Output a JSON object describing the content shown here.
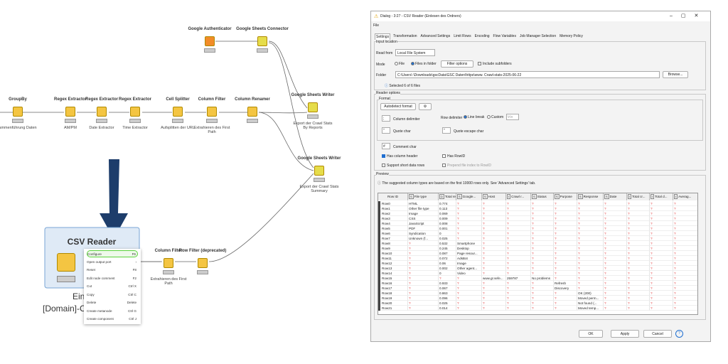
{
  "workflow": {
    "nodes": [
      {
        "title": "GroupBy",
        "caption": "ammenführung Daten"
      },
      {
        "title": "Regex Extractor",
        "caption": "AM/PM"
      },
      {
        "title": "Regex Extractor",
        "caption": "Date Extractor"
      },
      {
        "title": "Regex Extractor",
        "caption": "Time Extractor"
      },
      {
        "title": "Cell Splitter",
        "caption": "Aufsplitten der URL"
      },
      {
        "title": "Column Filter",
        "caption": "Extrahieren des First Path"
      },
      {
        "title": "Column Renamer"
      },
      {
        "title": "Google Sheets Writer",
        "caption": "Export der Crawl Stats By Reports"
      },
      {
        "title": "Google Sheets Writer",
        "caption": "Export der Crawl Stats Summary"
      },
      {
        "title": "Google Authenticator"
      },
      {
        "title": "Google Sheets Connector"
      },
      {
        "title": "Column Filter",
        "caption": "Extrahieren des First Path"
      },
      {
        "title": "Row Filter (deprecated)"
      }
    ],
    "csv_reader": {
      "title": "CSV Reader",
      "caption": [
        "Einlesen des",
        "[Domain]-Crawl S"
      ]
    }
  },
  "context_menu": {
    "items": [
      {
        "label": "Configure",
        "shortcut": "F6"
      },
      {
        "label": "Open output port",
        "shortcut": "›"
      },
      {
        "label": "Reset",
        "shortcut": "F8"
      },
      {
        "label": "Edit node comment",
        "shortcut": "F2"
      },
      {
        "label": "Cut",
        "shortcut": "Ctrl X"
      },
      {
        "label": "Copy",
        "shortcut": "Ctrl C"
      },
      {
        "label": "Delete",
        "shortcut": "Delete"
      },
      {
        "label": "Create metanode",
        "shortcut": "Ctrl G"
      },
      {
        "label": "Create component",
        "shortcut": "Ctrl J"
      }
    ]
  },
  "dialog": {
    "title": "Dialog - 3:27 - CSV Reader (Einlesen des Ordners)",
    "menu": "File",
    "tabs": [
      "Settings",
      "Transformation",
      "Advanced Settings",
      "Limit Rows",
      "Encoding",
      "Flow Variables",
      "Job Manager Selection",
      "Memory Policy"
    ],
    "input_location": {
      "heading": "Input location",
      "read_from_label": "Read from",
      "read_from": "Local File System",
      "mode_label": "Mode",
      "mode_file": "File",
      "mode_folder": "Files in folder",
      "filter_button": "Filter options",
      "include_subfolders": "Include subfolders",
      "folder_label": "Folder",
      "folder": "C:\\Users\\          \\Downloads\\gscData\\GSC Daten\\https\\www.          Crawl-stats-2025-06-22",
      "browse": "Browse...",
      "selected": "Selected 6 of 6 files"
    },
    "reader_options": {
      "heading": "Reader options",
      "format": "Format",
      "autodetect": "Autodetect format",
      "column_delimiter_value": ";",
      "column_delimiter": "Column delimiter",
      "row_delimiter": "Row delimiter",
      "line_break": "Line break",
      "custom": "Custom",
      "custom_value": "\\r\\n",
      "quote_value": "\"",
      "quote_char": "Quote char",
      "quote_escape_value": "\"",
      "quote_escape_char": "Quote escape char",
      "comment_value": "#",
      "comment_char": "Comment char",
      "has_header": "Has column header",
      "has_rowid": "Has RowID",
      "short_rows": "Support short data rows",
      "prepend": "Prepend file index to RowID"
    },
    "preview": {
      "heading": "Preview",
      "info": "The suggested column types are based on the first 10000 rows only. See 'Advanced Settings' tab.",
      "columns": [
        {
          "name": "Row ID"
        },
        {
          "type": "S",
          "name": "File type"
        },
        {
          "type": "D",
          "name": "Total re..."
        },
        {
          "type": "S",
          "name": "Google..."
        },
        {
          "type": "S",
          "name": "Host"
        },
        {
          "type": "I",
          "name": "Crawl r..."
        },
        {
          "type": "S",
          "name": "Status"
        },
        {
          "type": "S",
          "name": "Purpose"
        },
        {
          "type": "S",
          "name": "Response"
        },
        {
          "type": "S",
          "name": "Date"
        },
        {
          "type": "I",
          "name": "Total cr..."
        },
        {
          "type": "I",
          "name": "Total d..."
        },
        {
          "type": "I",
          "name": "Averag..."
        }
      ],
      "rows": [
        [
          "Row0",
          "HTML",
          "0.774",
          "?",
          "?",
          "?",
          "?",
          "?",
          "?",
          "?",
          "?",
          "?",
          "?"
        ],
        [
          "Row1",
          "Other file type",
          "0.113",
          "?",
          "?",
          "?",
          "?",
          "?",
          "?",
          "?",
          "?",
          "?",
          "?"
        ],
        [
          "Row2",
          "Image",
          "0.069",
          "?",
          "?",
          "?",
          "?",
          "?",
          "?",
          "?",
          "?",
          "?",
          "?"
        ],
        [
          "Row3",
          "CSS",
          "0.009",
          "?",
          "?",
          "?",
          "?",
          "?",
          "?",
          "?",
          "?",
          "?",
          "?"
        ],
        [
          "Row4",
          "JavaScript",
          "0.008",
          "?",
          "?",
          "?",
          "?",
          "?",
          "?",
          "?",
          "?",
          "?",
          "?"
        ],
        [
          "Row5",
          "PDF",
          "0.001",
          "?",
          "?",
          "?",
          "?",
          "?",
          "?",
          "?",
          "?",
          "?",
          "?"
        ],
        [
          "Row6",
          "Syndication",
          "0",
          "?",
          "?",
          "?",
          "?",
          "?",
          "?",
          "?",
          "?",
          "?",
          "?"
        ],
        [
          "Row7",
          "Unknown (f...",
          "0.025",
          "?",
          "?",
          "?",
          "?",
          "?",
          "?",
          "?",
          "?",
          "?",
          "?"
        ],
        [
          "Row8",
          "?",
          "0.532",
          "Smartphone",
          "?",
          "?",
          "?",
          "?",
          "?",
          "?",
          "?",
          "?",
          "?"
        ],
        [
          "Row9",
          "?",
          "0.245",
          "Desktop",
          "?",
          "?",
          "?",
          "?",
          "?",
          "?",
          "?",
          "?",
          "?"
        ],
        [
          "Row10",
          "?",
          "0.087",
          "Page resour...",
          "?",
          "?",
          "?",
          "?",
          "?",
          "?",
          "?",
          "?",
          "?"
        ],
        [
          "Row11",
          "?",
          "0.072",
          "AdsBot",
          "?",
          "?",
          "?",
          "?",
          "?",
          "?",
          "?",
          "?",
          "?"
        ],
        [
          "Row12",
          "?",
          "0.06",
          "Image",
          "?",
          "?",
          "?",
          "?",
          "?",
          "?",
          "?",
          "?",
          "?"
        ],
        [
          "Row13",
          "?",
          "0.002",
          "Other agent...",
          "?",
          "?",
          "?",
          "?",
          "?",
          "?",
          "?",
          "?",
          "?"
        ],
        [
          "Row14",
          "?",
          "0",
          "Video",
          "?",
          "?",
          "?",
          "?",
          "?",
          "?",
          "?",
          "?",
          "?"
        ],
        [
          "Row15",
          "?",
          "?",
          "?",
          "www.gr.sefe...",
          "259787",
          "No problems",
          "?",
          "?",
          "?",
          "?",
          "?",
          "?"
        ],
        [
          "Row16",
          "?",
          "0.933",
          "?",
          "?",
          "?",
          "?",
          "Refresh",
          "?",
          "?",
          "?",
          "?",
          "?"
        ],
        [
          "Row17",
          "?",
          "0.067",
          "?",
          "?",
          "?",
          "?",
          "Discovery",
          "?",
          "?",
          "?",
          "?",
          "?"
        ],
        [
          "Row18",
          "?",
          "0.863",
          "?",
          "?",
          "?",
          "?",
          "?",
          "OK (200)",
          "?",
          "?",
          "?",
          "?"
        ],
        [
          "Row19",
          "?",
          "0.096",
          "?",
          "?",
          "?",
          "?",
          "?",
          "Moved perm...",
          "?",
          "?",
          "?",
          "?"
        ],
        [
          "Row20",
          "?",
          "0.025",
          "?",
          "?",
          "?",
          "?",
          "?",
          "Not found (...",
          "?",
          "?",
          "?",
          "?"
        ],
        [
          "Row21",
          "?",
          "0.014",
          "?",
          "?",
          "?",
          "?",
          "?",
          "Moved temp...",
          "?",
          "?",
          "?",
          "?"
        ]
      ]
    },
    "buttons": {
      "ok": "OK",
      "apply": "Apply",
      "cancel": "Cancel",
      "help": "?"
    }
  }
}
